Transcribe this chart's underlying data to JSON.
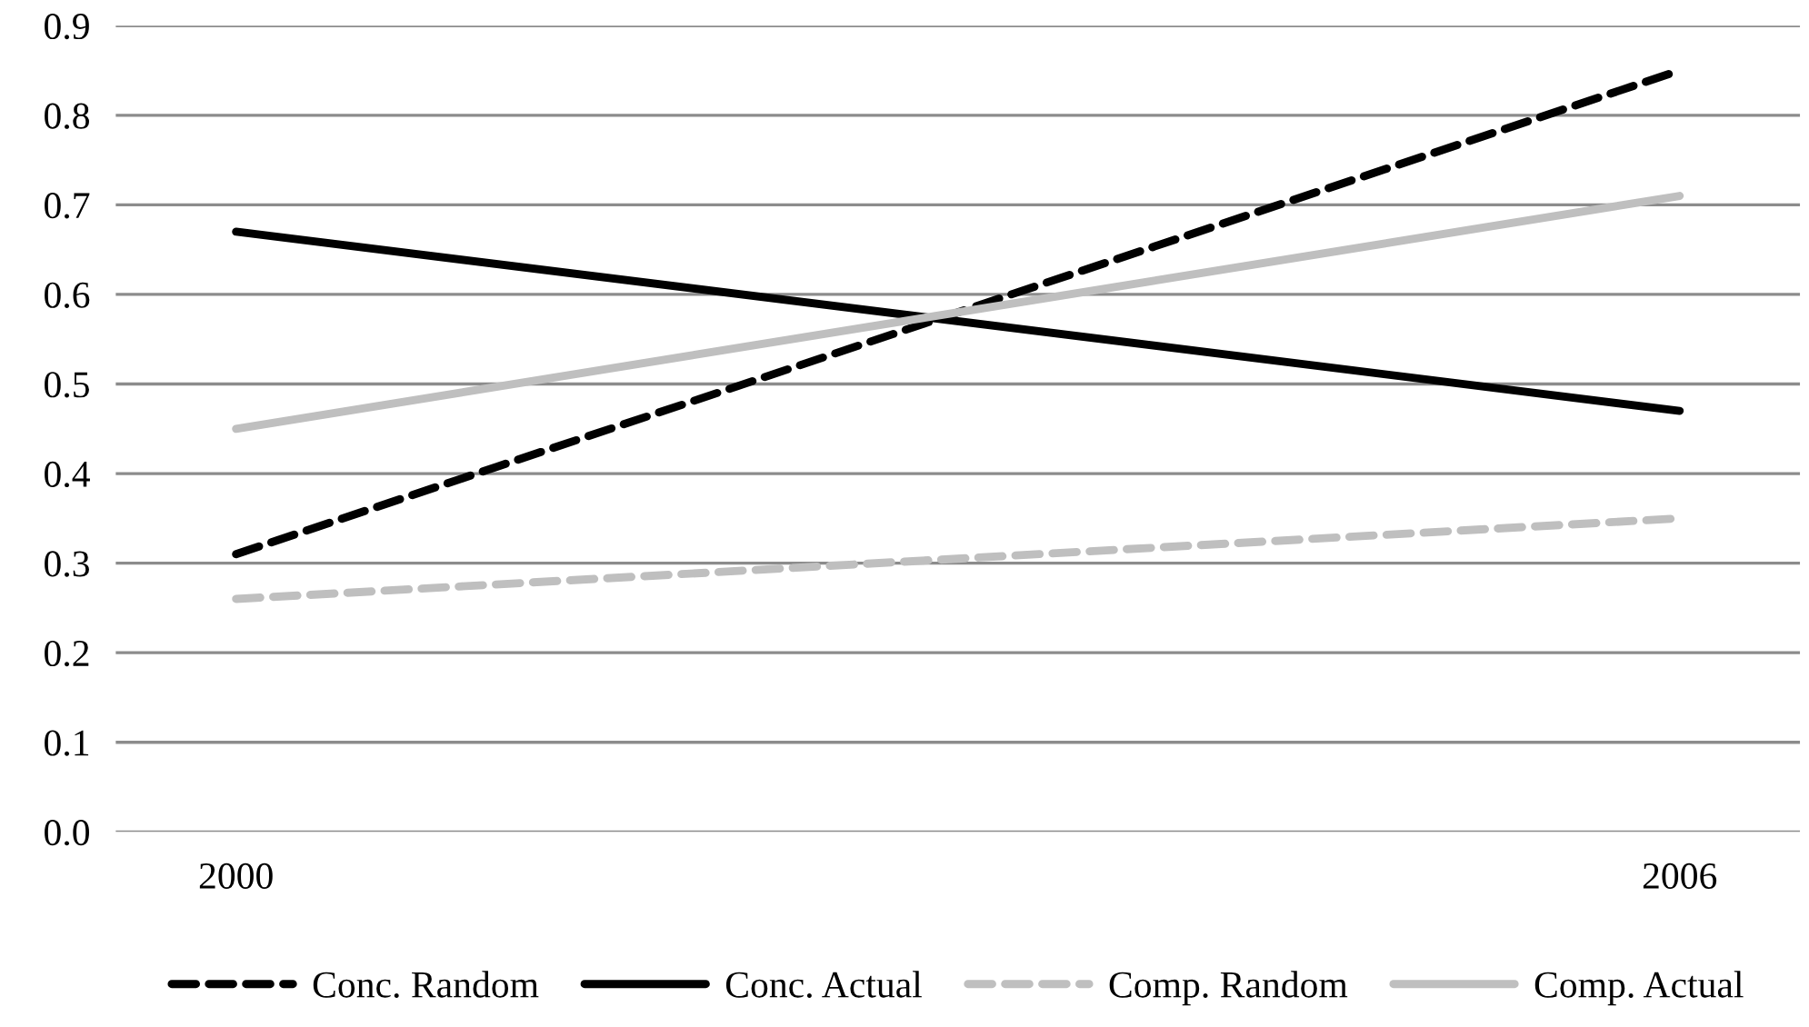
{
  "chart_data": {
    "type": "line",
    "x": [
      2000,
      2006
    ],
    "xlim": [
      1999.5,
      2006.5
    ],
    "xticks": [
      2000,
      2006
    ],
    "ylim": [
      0,
      0.9
    ],
    "yticks": [
      {
        "value": 0,
        "label": "0.0"
      },
      0.1,
      0.2,
      0.3,
      0.4,
      0.5,
      0.6,
      0.7,
      0.8,
      0.9
    ],
    "grid": "y",
    "legend": "bottom",
    "marker": "none",
    "series": [
      {
        "name": "Conc. Random",
        "color": "#000000",
        "line_style": "dashed",
        "values": [
          0.31,
          0.85
        ]
      },
      {
        "name": "Conc. Actual",
        "color": "#000000",
        "line_style": "solid",
        "values": [
          0.67,
          0.47
        ]
      },
      {
        "name": "Comp. Random",
        "color": "#bfbfbf",
        "line_style": "dashed",
        "values": [
          0.26,
          0.35
        ]
      },
      {
        "name": "Comp. Actual",
        "color": "#bfbfbf",
        "line_style": "solid",
        "values": [
          0.45,
          0.71
        ]
      }
    ]
  }
}
